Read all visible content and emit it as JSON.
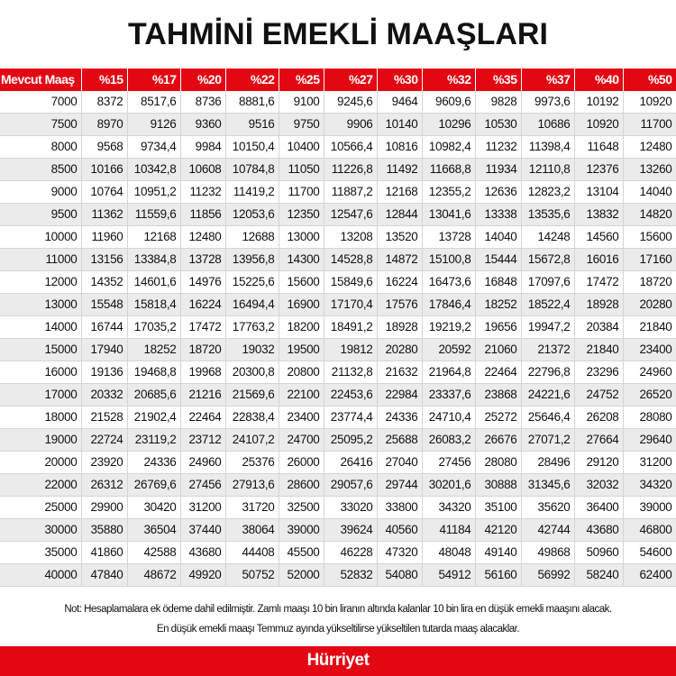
{
  "title": "TAHMİNİ EMEKLİ MAAŞLARI",
  "colors": {
    "header": "#e30613",
    "alt_row": "#ebebeb",
    "footer": "#e30613"
  },
  "table": {
    "headers": [
      "Mevcut Maaş",
      "%15",
      "%17",
      "%20",
      "%22",
      "%25",
      "%27",
      "%30",
      "%32",
      "%35",
      "%37",
      "%40",
      "%50"
    ],
    "rows": [
      [
        "7000",
        "8372",
        "8517,6",
        "8736",
        "8881,6",
        "9100",
        "9245,6",
        "9464",
        "9609,6",
        "9828",
        "9973,6",
        "10192",
        "10920"
      ],
      [
        "7500",
        "8970",
        "9126",
        "9360",
        "9516",
        "9750",
        "9906",
        "10140",
        "10296",
        "10530",
        "10686",
        "10920",
        "11700"
      ],
      [
        "8000",
        "9568",
        "9734,4",
        "9984",
        "10150,4",
        "10400",
        "10566,4",
        "10816",
        "10982,4",
        "11232",
        "11398,4",
        "11648",
        "12480"
      ],
      [
        "8500",
        "10166",
        "10342,8",
        "10608",
        "10784,8",
        "11050",
        "11226,8",
        "11492",
        "11668,8",
        "11934",
        "12110,8",
        "12376",
        "13260"
      ],
      [
        "9000",
        "10764",
        "10951,2",
        "11232",
        "11419,2",
        "11700",
        "11887,2",
        "12168",
        "12355,2",
        "12636",
        "12823,2",
        "13104",
        "14040"
      ],
      [
        "9500",
        "11362",
        "11559,6",
        "11856",
        "12053,6",
        "12350",
        "12547,6",
        "12844",
        "13041,6",
        "13338",
        "13535,6",
        "13832",
        "14820"
      ],
      [
        "10000",
        "11960",
        "12168",
        "12480",
        "12688",
        "13000",
        "13208",
        "13520",
        "13728",
        "14040",
        "14248",
        "14560",
        "15600"
      ],
      [
        "11000",
        "13156",
        "13384,8",
        "13728",
        "13956,8",
        "14300",
        "14528,8",
        "14872",
        "15100,8",
        "15444",
        "15672,8",
        "16016",
        "17160"
      ],
      [
        "12000",
        "14352",
        "14601,6",
        "14976",
        "15225,6",
        "15600",
        "15849,6",
        "16224",
        "16473,6",
        "16848",
        "17097,6",
        "17472",
        "18720"
      ],
      [
        "13000",
        "15548",
        "15818,4",
        "16224",
        "16494,4",
        "16900",
        "17170,4",
        "17576",
        "17846,4",
        "18252",
        "18522,4",
        "18928",
        "20280"
      ],
      [
        "14000",
        "16744",
        "17035,2",
        "17472",
        "17763,2",
        "18200",
        "18491,2",
        "18928",
        "19219,2",
        "19656",
        "19947,2",
        "20384",
        "21840"
      ],
      [
        "15000",
        "17940",
        "18252",
        "18720",
        "19032",
        "19500",
        "19812",
        "20280",
        "20592",
        "21060",
        "21372",
        "21840",
        "23400"
      ],
      [
        "16000",
        "19136",
        "19468,8",
        "19968",
        "20300,8",
        "20800",
        "21132,8",
        "21632",
        "21964,8",
        "22464",
        "22796,8",
        "23296",
        "24960"
      ],
      [
        "17000",
        "20332",
        "20685,6",
        "21216",
        "21569,6",
        "22100",
        "22453,6",
        "22984",
        "23337,6",
        "23868",
        "24221,6",
        "24752",
        "26520"
      ],
      [
        "18000",
        "21528",
        "21902,4",
        "22464",
        "22838,4",
        "23400",
        "23774,4",
        "24336",
        "24710,4",
        "25272",
        "25646,4",
        "26208",
        "28080"
      ],
      [
        "19000",
        "22724",
        "23119,2",
        "23712",
        "24107,2",
        "24700",
        "25095,2",
        "25688",
        "26083,2",
        "26676",
        "27071,2",
        "27664",
        "29640"
      ],
      [
        "20000",
        "23920",
        "24336",
        "24960",
        "25376",
        "26000",
        "26416",
        "27040",
        "27456",
        "28080",
        "28496",
        "29120",
        "31200"
      ],
      [
        "22000",
        "26312",
        "26769,6",
        "27456",
        "27913,6",
        "28600",
        "29057,6",
        "29744",
        "30201,6",
        "30888",
        "31345,6",
        "32032",
        "34320"
      ],
      [
        "25000",
        "29900",
        "30420",
        "31200",
        "31720",
        "32500",
        "33020",
        "33800",
        "34320",
        "35100",
        "35620",
        "36400",
        "39000"
      ],
      [
        "30000",
        "35880",
        "36504",
        "37440",
        "38064",
        "39000",
        "39624",
        "40560",
        "41184",
        "42120",
        "42744",
        "43680",
        "46800"
      ],
      [
        "35000",
        "41860",
        "42588",
        "43680",
        "44408",
        "45500",
        "46228",
        "47320",
        "48048",
        "49140",
        "49868",
        "50960",
        "54600"
      ],
      [
        "40000",
        "47840",
        "48672",
        "49920",
        "50752",
        "52000",
        "52832",
        "54080",
        "54912",
        "56160",
        "56992",
        "58240",
        "62400"
      ]
    ]
  },
  "notes": [
    "Not: Hesaplamalara ek ödeme dahil edilmiştir. Zamlı maaşı 10 bin liranın altında kalanlar 10 bin lira en düşük emekli maaşını alacak.",
    "En düşük emekli maaşı Temmuz ayında yükseltilirse yükseltilen tutarda maaş alacaklar."
  ],
  "footer": {
    "logo": "Hürriyet"
  }
}
